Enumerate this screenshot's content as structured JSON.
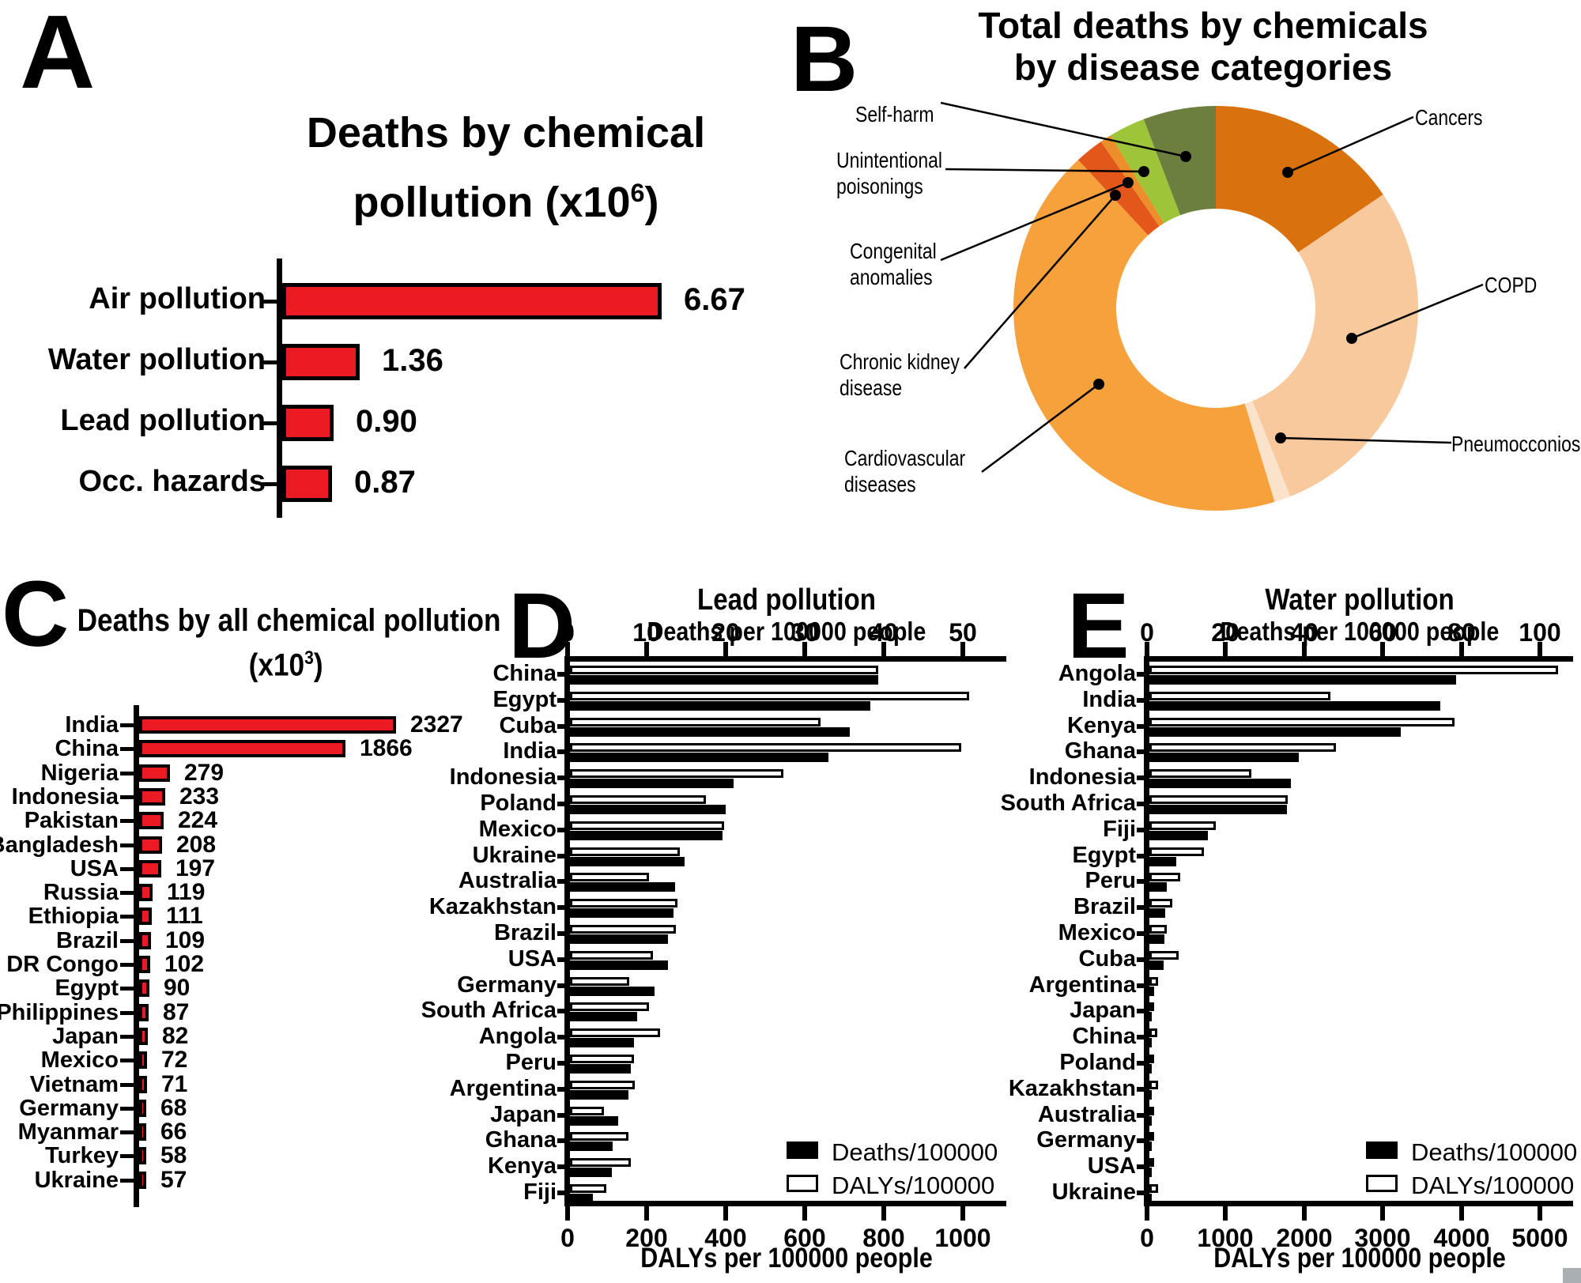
{
  "panel_letters": {
    "a": "A",
    "b": "B",
    "c": "C",
    "d": "D",
    "e": "E"
  },
  "legend": {
    "deaths": "Deaths/100000",
    "dalys": "DALYs/100000"
  },
  "chart_data": [
    {
      "id": "deaths_by_chemical_pollution",
      "type": "bar",
      "title_line1": "Deaths by chemical",
      "title_line2_pre": "pollution (x10",
      "title_line2_sup": "6",
      "title_line2_post": ")",
      "categories": [
        "Air pollution",
        "Water pollution",
        "Lead pollution",
        "Occ. hazards"
      ],
      "values": [
        6.67,
        1.36,
        0.9,
        0.87
      ],
      "value_labels": [
        "6.67",
        "1.36",
        "0.90",
        "0.87"
      ],
      "bar_color": "#EC1B23",
      "xlim": [
        0,
        7
      ]
    },
    {
      "id": "total_deaths_by_chemicals_by_disease",
      "type": "pie",
      "title_line1": "Total deaths by chemicals",
      "title_line2": "by disease categories",
      "segments": [
        {
          "label_lines": [
            "Cancers"
          ],
          "percent": 15.5,
          "color": "#D9710D"
        },
        {
          "label_lines": [
            "COPD"
          ],
          "percent": 28.5,
          "color": "#F9C99E"
        },
        {
          "label_lines": [
            "Pneumocconiosis"
          ],
          "percent": 1.3,
          "color": "#FBE3CB"
        },
        {
          "label_lines": [
            "Cardiovascular",
            "diseases"
          ],
          "percent": 42.8,
          "color": "#F6A13C"
        },
        {
          "label_lines": [
            "Chronic kidney",
            "disease"
          ],
          "percent": 2.3,
          "color": "#E4571B"
        },
        {
          "label_lines": [
            "Congenital",
            "anomalies"
          ],
          "percent": 0.9,
          "color": "#EC8E2A"
        },
        {
          "label_lines": [
            "Unintentional",
            "poisonings"
          ],
          "percent": 2.9,
          "color": "#9EC43A"
        },
        {
          "label_lines": [
            "Self-harm"
          ],
          "percent": 5.8,
          "color": "#6C7F3F"
        }
      ]
    },
    {
      "id": "deaths_by_all_chemical_pollution_by_country",
      "type": "bar",
      "title_line1": "Deaths by all chemical pollution",
      "title_line2_pre": "(x10",
      "title_line2_sup": "3",
      "title_line2_post": ")",
      "categories": [
        "India",
        "China",
        "Nigeria",
        "Indonesia",
        "Pakistan",
        "Bangladesh",
        "USA",
        "Russia",
        "Ethiopia",
        "Brazil",
        "DR Congo",
        "Egypt",
        "Philippines",
        "Japan",
        "Mexico",
        "Vietnam",
        "Germany",
        "Myanmar",
        "Turkey",
        "Ukraine"
      ],
      "values": [
        2327,
        1866,
        279,
        233,
        224,
        208,
        197,
        119,
        111,
        109,
        102,
        90,
        87,
        82,
        72,
        71,
        68,
        66,
        58,
        57
      ],
      "bar_color": "#EC1B23",
      "xlim": [
        0,
        2500
      ]
    },
    {
      "id": "lead_pollution",
      "type": "paired-bar",
      "title": "Lead pollution",
      "top_axis_label": "Deaths per 100000 people",
      "bottom_axis_label": "DALYs per 100000 people",
      "top_ticks": [
        0,
        10,
        20,
        30,
        40,
        50
      ],
      "bottom_ticks": [
        0,
        200,
        400,
        600,
        800,
        1000
      ],
      "legend": [
        "Deaths/100000",
        "DALYs/100000"
      ],
      "countries": [
        "China",
        "Egypt",
        "Cuba",
        "India",
        "Indonesia",
        "Poland",
        "Mexico",
        "Ukraine",
        "Australia",
        "Kazakhstan",
        "Brazil",
        "USA",
        "Germany",
        "South Africa",
        "Angola",
        "Peru",
        "Argentina",
        "Japan",
        "Ghana",
        "Kenya",
        "Fiji"
      ],
      "deaths_per_100000": [
        39,
        38,
        35.4,
        32.7,
        20.7,
        19.7,
        19.3,
        14.5,
        13.3,
        13.1,
        12.4,
        12.4,
        10.7,
        8.5,
        8.1,
        7.7,
        7.4,
        6.1,
        5.4,
        5.3,
        2.9
      ],
      "dalys_per_100000": [
        780,
        1010,
        634,
        990,
        540,
        343,
        390,
        277,
        200,
        271,
        268,
        210,
        150,
        200,
        228,
        162,
        163,
        85,
        147,
        153,
        91
      ]
    },
    {
      "id": "water_pollution",
      "type": "paired-bar",
      "title": "Water pollution",
      "top_axis_label": "Deaths per 100000 people",
      "bottom_axis_label": "DALYs per 100000 people",
      "top_ticks": [
        0,
        20,
        40,
        60,
        80,
        100
      ],
      "bottom_ticks": [
        0,
        1000,
        2000,
        3000,
        4000,
        5000
      ],
      "legend": [
        "Deaths/100000",
        "DALYs/100000"
      ],
      "countries": [
        "Angola",
        "India",
        "Kenya",
        "Ghana",
        "Indonesia",
        "South Africa",
        "Fiji",
        "Egypt",
        "Peru",
        "Brazil",
        "Mexico",
        "Cuba",
        "Argentina",
        "Japan",
        "China",
        "Poland",
        "Kazakhstan",
        "Australia",
        "Germany",
        "USA",
        "Ukraine"
      ],
      "deaths_per_100000": [
        78,
        74,
        64,
        38,
        36,
        35,
        14.9,
        6.8,
        4.4,
        4.0,
        3.8,
        3.6,
        1.2,
        0.7,
        0.5,
        0.4,
        0.4,
        0.15,
        0.15,
        0.2,
        0.2
      ],
      "dalys_per_100000": [
        5200,
        2300,
        3880,
        2370,
        1300,
        1760,
        845,
        694,
        392,
        292,
        221,
        372,
        111,
        40,
        105,
        55,
        115,
        12,
        12,
        18,
        110
      ]
    }
  ]
}
